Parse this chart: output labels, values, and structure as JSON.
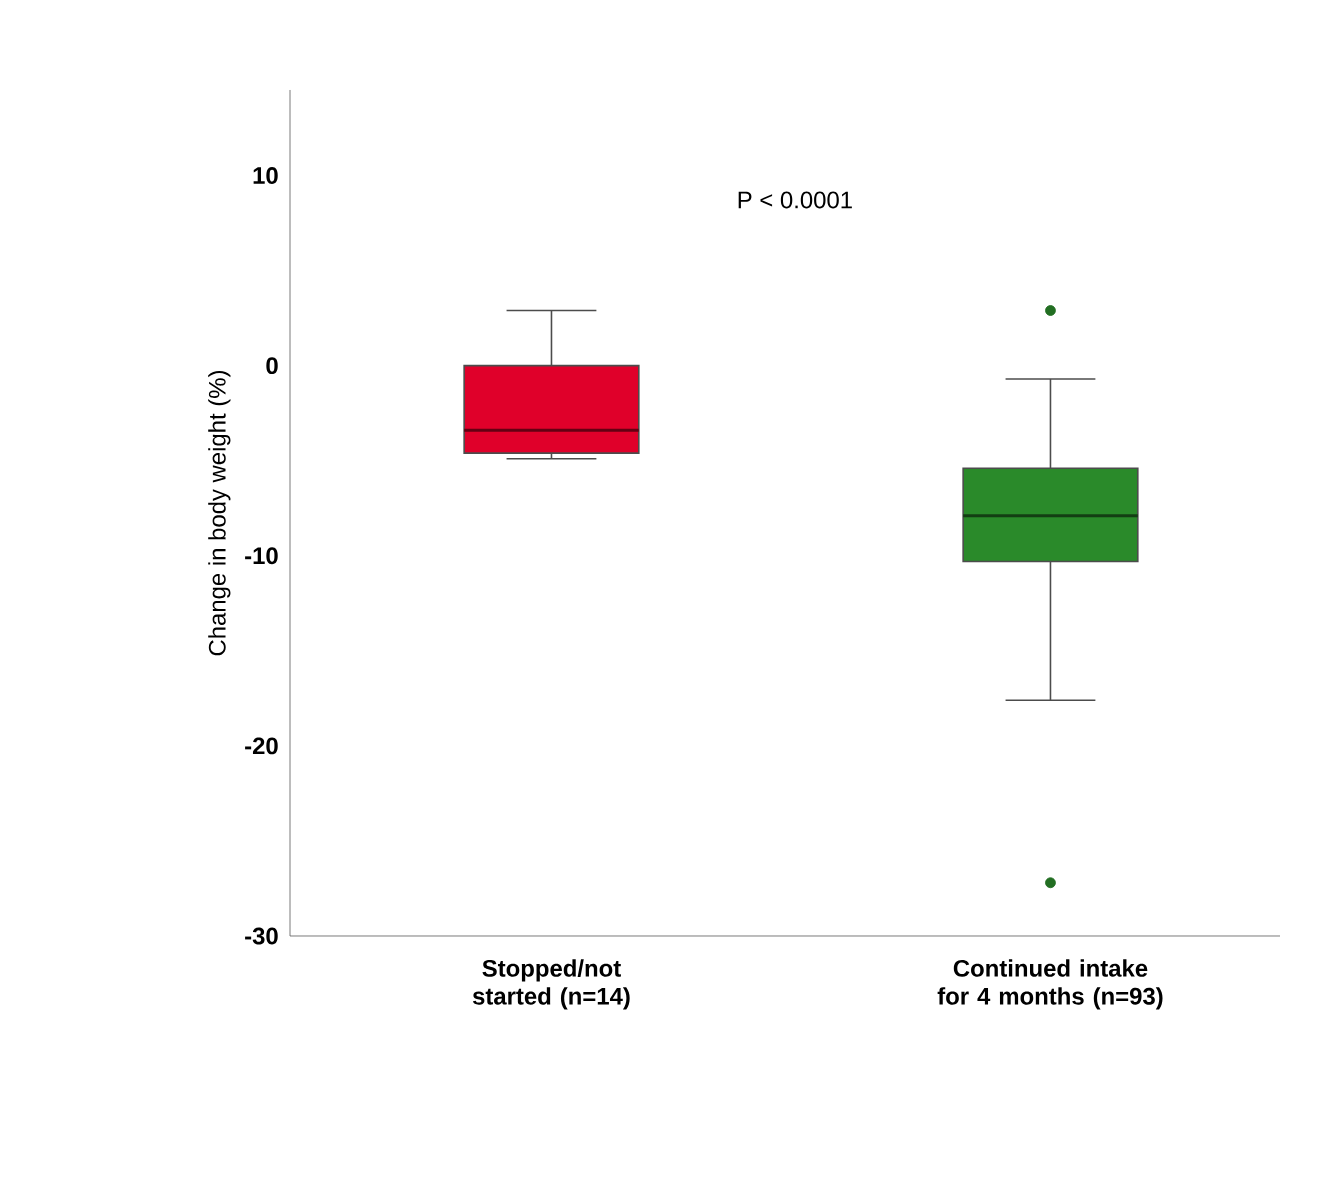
{
  "chart_data": {
    "type": "box",
    "ylabel": "Change in body weight (%)",
    "categories": [
      "Stopped/not started (n=14)",
      "Continued intake for 4 months (n=93)"
    ],
    "boxes": [
      {
        "low": -4.9,
        "q1": -4.6,
        "median": -3.4,
        "q3": 0,
        "high": 2.9
      },
      {
        "low": -17.6,
        "q1": -10.3,
        "median": -7.9,
        "q3": -5.4,
        "high": -0.7,
        "outliers": [
          2.9,
          -27.2
        ]
      }
    ],
    "colors": [
      "#e0002a",
      "#2a8a2a"
    ],
    "ylim": [
      -30,
      14.5
    ],
    "yticks": [
      -30,
      -20,
      -10,
      0,
      10
    ],
    "annotations": [
      "P < 0.0001"
    ],
    "grid": false,
    "marker": "circle"
  }
}
